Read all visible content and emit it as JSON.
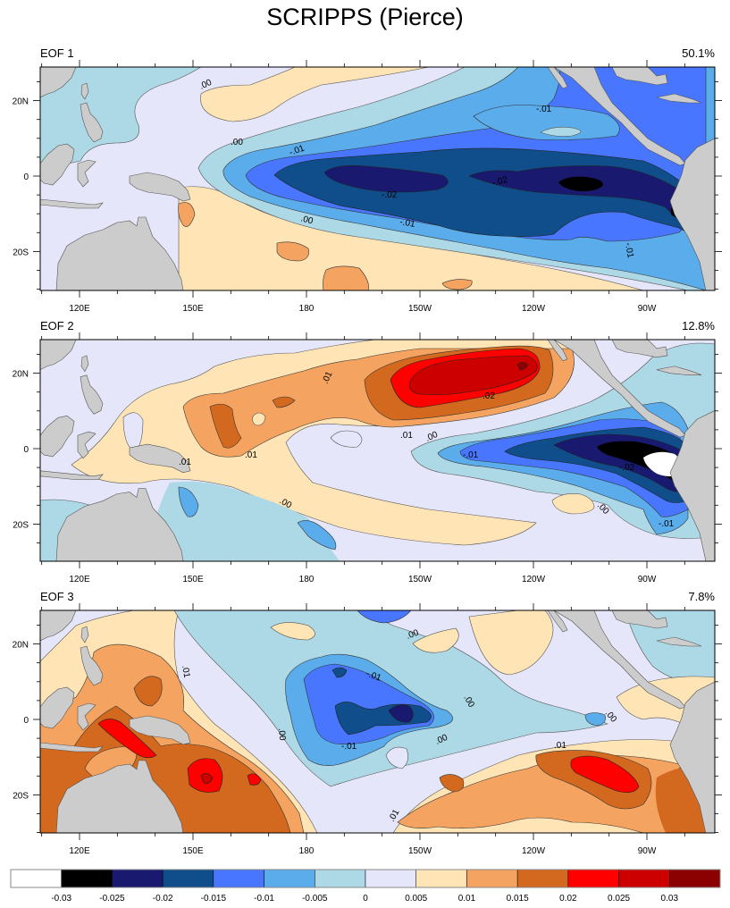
{
  "title": "SCRIPPS (Pierce)",
  "chart_data": {
    "type": "heatmap",
    "subtype": "filled-contour-map",
    "title": "SCRIPPS (Pierce)",
    "panels": [
      {
        "name": "EOF 1",
        "variance": "50.1%",
        "contour_labels": [
          ".00",
          ".00",
          "-.01",
          "-.02",
          "-.02",
          ".00",
          "-.01",
          "-.01",
          "-.01"
        ],
        "features": {
          "min_region": "eastern equatorial Pacific near 105W and Peru coast",
          "min_value_class": "-0.03 to -0.025"
        }
      },
      {
        "name": "EOF 2",
        "variance": "12.8%",
        "contour_labels": [
          ".01",
          ".01",
          ".01",
          ".02",
          ".01",
          ".00",
          "-.01",
          "-.02",
          ".00",
          "-.01",
          ".00"
        ],
        "features": {
          "max_region": "subtropical North Pacific near 20N 125W",
          "min_region": "eastern equatorial Pacific near 85W"
        }
      },
      {
        "name": "EOF 3",
        "variance": "7.8%",
        "contour_labels": [
          ".01",
          ".00",
          "-.01",
          "-.01",
          ".00",
          ".00",
          ".00",
          ".00",
          ".01",
          ".01"
        ],
        "features": {
          "max_region": "southwest Pacific 20S 150E and southeast Pacific 20S 110W",
          "min_region": "central equatorial Pacific near 150W"
        }
      }
    ],
    "x_ticks": [
      "120E",
      "150E",
      "180",
      "150W",
      "120W",
      "90W"
    ],
    "y_ticks": [
      "20N",
      "0",
      "20S"
    ],
    "xlim": [
      "110E",
      "72W"
    ],
    "ylim": [
      "30S",
      "29N"
    ],
    "colorbar": {
      "labels": [
        "-0.03",
        "-0.025",
        "-0.02",
        "-0.015",
        "-0.01",
        "-0.005",
        "0",
        "0.005",
        "0.01",
        "0.015",
        "0.02",
        "0.025",
        "0.03"
      ],
      "colors": [
        "#FFFFFF",
        "#000000",
        "#191970",
        "#0F4E8A",
        "#4876FF",
        "#5AACEB",
        "#ADD8E6",
        "#E6E6FA",
        "#FFE4B5",
        "#F4A460",
        "#D2691E",
        "#FF0000",
        "#CD0000",
        "#8B0000"
      ]
    }
  },
  "land_color": "#CCCCCC"
}
